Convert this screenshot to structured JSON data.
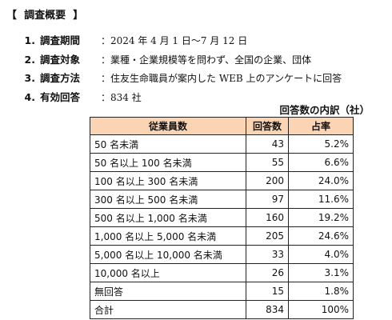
{
  "section": {
    "open_bracket": "【",
    "title": "調査概要",
    "close_bracket": "】"
  },
  "items": [
    {
      "number": "1.",
      "label": "調査期間",
      "value": "：2024 年 4 月 1 日～7 月 12 日"
    },
    {
      "number": "2.",
      "label": "調査対象",
      "value": "：業種・企業規模等を問わず、全国の企業、団体"
    },
    {
      "number": "3.",
      "label": "調査方法",
      "value": "：住友生命職員が案内した WEB 上のアンケートに回答"
    },
    {
      "number": "4.",
      "label": "有効回答",
      "value": "：834 社"
    }
  ],
  "table": {
    "caption": "回答数の内訳（社）",
    "headers": [
      "従業員数",
      "回答数",
      "占率"
    ],
    "rows": [
      {
        "category": "50 名未満",
        "count": "43",
        "share": "5.2%"
      },
      {
        "category": "50 名以上 100 名未満",
        "count": "55",
        "share": "6.6%"
      },
      {
        "category": "100 名以上 300 名未満",
        "count": "200",
        "share": "24.0%"
      },
      {
        "category": "300 名以上 500 名未満",
        "count": "97",
        "share": "11.6%"
      },
      {
        "category": "500 名以上 1,000 名未満",
        "count": "160",
        "share": "19.2%"
      },
      {
        "category": "1,000 名以上 5,000 名未満",
        "count": "205",
        "share": "24.6%"
      },
      {
        "category": "5,000 名以上 10,000 名未満",
        "count": "33",
        "share": "4.0%"
      },
      {
        "category": "10,000 名以上",
        "count": "26",
        "share": "3.1%"
      },
      {
        "category": "無回答",
        "count": "15",
        "share": "1.8%"
      },
      {
        "category": "合計",
        "count": "834",
        "share": "100%"
      }
    ]
  },
  "colors": {
    "header_fill": "#fbd4b4",
    "border": "#222222",
    "text": "#111111"
  }
}
